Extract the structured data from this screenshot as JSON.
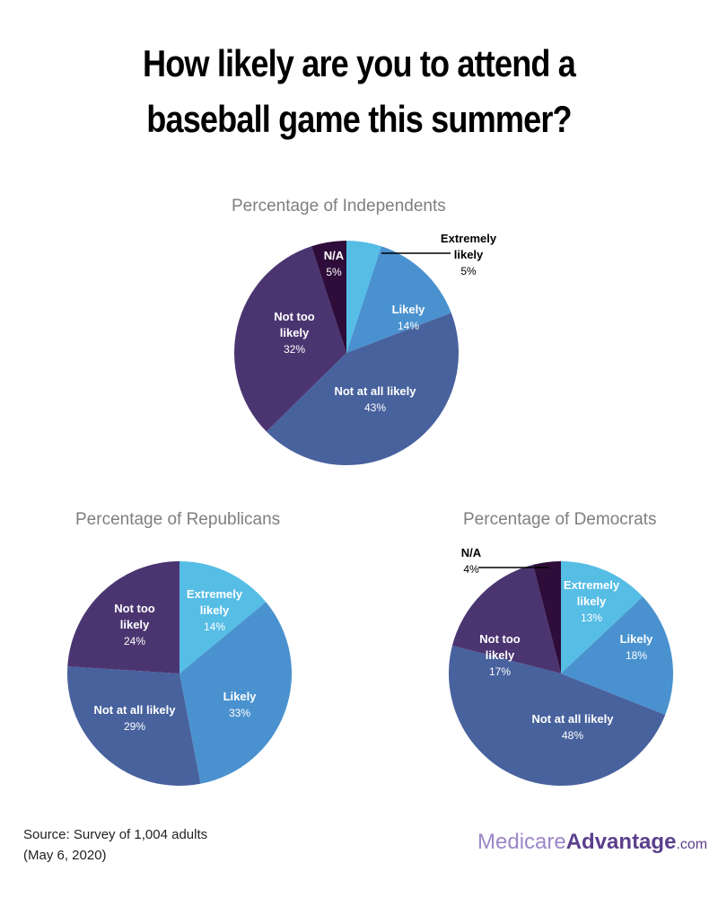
{
  "title_line1": "How likely are you to attend a",
  "title_line2": "baseball game this summer?",
  "source_line1": "Source: Survey of 1,004 adults",
  "source_line2": "(May 6, 2020)",
  "logo": {
    "part1": "Medicare",
    "part2": "Advantage",
    "part3": ".com"
  },
  "colors": {
    "extremely_likely": "#56bde5",
    "likely": "#4a92cf",
    "not_at_all_likely": "#48629e",
    "not_too_likely": "#4b3571",
    "na": "#2e0d3a"
  },
  "chart_data": [
    {
      "type": "pie",
      "title": "Percentage of Independents",
      "slices": [
        {
          "label": "Extremely likely",
          "value": 5,
          "display": "5%",
          "color": "#56bde5"
        },
        {
          "label": "Likely",
          "value": 14,
          "display": "14%",
          "color": "#4a92cf"
        },
        {
          "label": "Not at all likely",
          "value": 43,
          "display": "43%",
          "color": "#48629e"
        },
        {
          "label": "Not too likely",
          "value": 32,
          "display": "32%",
          "color": "#4b3571"
        },
        {
          "label": "N/A",
          "value": 5,
          "display": "5%",
          "color": "#2e0d3a"
        }
      ]
    },
    {
      "type": "pie",
      "title": "Percentage of Republicans",
      "slices": [
        {
          "label": "Extremely likely",
          "value": 14,
          "display": "14%",
          "color": "#56bde5"
        },
        {
          "label": "Likely",
          "value": 33,
          "display": "33%",
          "color": "#4a92cf"
        },
        {
          "label": "Not at all likely",
          "value": 29,
          "display": "29%",
          "color": "#48629e"
        },
        {
          "label": "Not too likely",
          "value": 24,
          "display": "24%",
          "color": "#4b3571"
        }
      ]
    },
    {
      "type": "pie",
      "title": "Percentage of Democrats",
      "slices": [
        {
          "label": "Extremely likely",
          "value": 13,
          "display": "13%",
          "color": "#56bde5"
        },
        {
          "label": "Likely",
          "value": 18,
          "display": "18%",
          "color": "#4a92cf"
        },
        {
          "label": "Not at all likely",
          "value": 48,
          "display": "48%",
          "color": "#48629e"
        },
        {
          "label": "Not too likely",
          "value": 17,
          "display": "17%",
          "color": "#4b3571"
        },
        {
          "label": "N/A",
          "value": 4,
          "display": "4%",
          "color": "#2e0d3a"
        }
      ]
    }
  ]
}
